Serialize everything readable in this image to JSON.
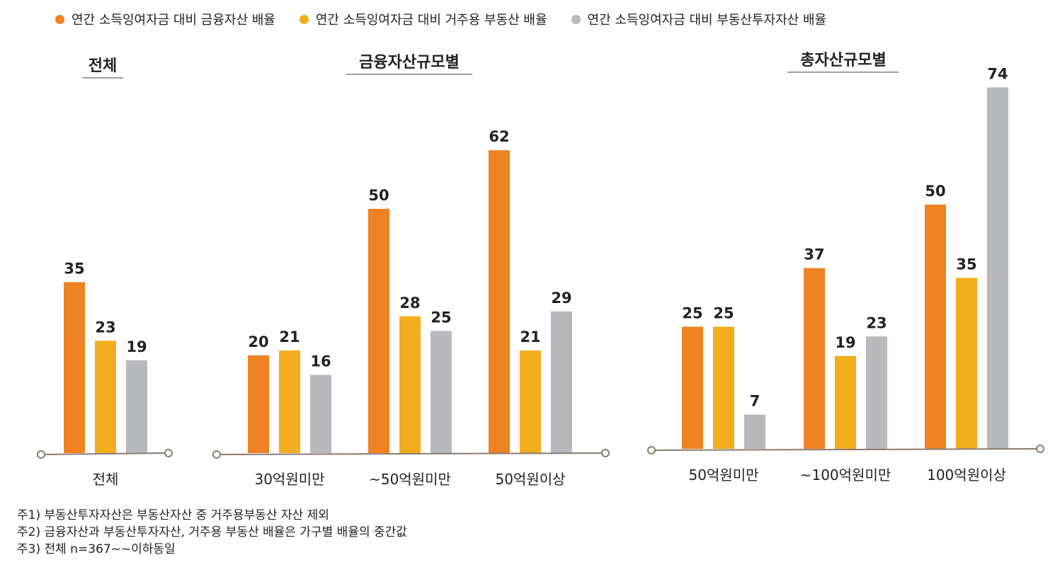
{
  "legend": [
    {
      "label": "연간 소득잉여자금 대비 금융자산 배율",
      "color": "#ef8222"
    },
    {
      "label": "연간 소득잉여자금 대비 거주용 부동산 배율",
      "color": "#f2ae1e"
    },
    {
      "label": "연간 소득잉여자금 대비 부동산투자자산 배율",
      "color": "#b8b9bd"
    }
  ],
  "colors": {
    "series1": "#ef8222",
    "series2": "#f2ae1e",
    "series3": "#b8b9bd",
    "axis": "#8b7b73"
  },
  "chart_data": {
    "type": "bar",
    "series": [
      {
        "name": "연간 소득잉여자금 대비 금융자산 배율"
      },
      {
        "name": "연간 소득잉여자금 대비 거주용 부동산 배율"
      },
      {
        "name": "연간 소득잉여자금 대비 부동산투자자산 배율"
      }
    ],
    "panels": [
      {
        "title": "전체",
        "categories": [
          "전체"
        ],
        "values": [
          [
            35,
            23,
            19
          ]
        ]
      },
      {
        "title": "금융자산규모별",
        "categories": [
          "30억원미만",
          "~50억원미만",
          "50억원이상"
        ],
        "values": [
          [
            20,
            21,
            16
          ],
          [
            50,
            28,
            25
          ],
          [
            62,
            21,
            29
          ]
        ]
      },
      {
        "title": "총자산규모별",
        "categories": [
          "50억원미만",
          "~100억원미만",
          "100억원이상"
        ],
        "values": [
          [
            25,
            25,
            7
          ],
          [
            37,
            19,
            23
          ],
          [
            50,
            35,
            74
          ]
        ]
      }
    ]
  },
  "notes": [
    "주1) 부동산투자자산은 부동산자산 중 거주용부동산 자산 제외",
    "주2) 금융자산과 부동산투자자산, 거주용 부동산 배율은 가구별 배율의 중간값",
    "주3) 전체 n=367~~이하동일"
  ]
}
